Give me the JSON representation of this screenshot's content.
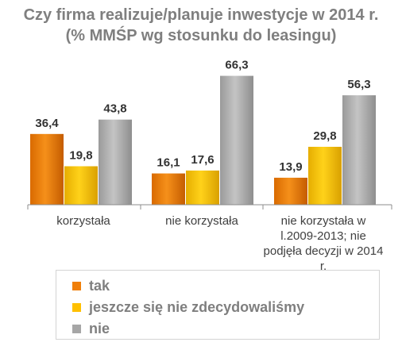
{
  "chart_data": {
    "type": "bar",
    "title": [
      "Czy firma realizuje/planuje inwestycje w 2014 r.",
      "(% MMŚP wg stosunku do leasingu)"
    ],
    "categories": [
      [
        "korzystała"
      ],
      [
        "nie korzystała"
      ],
      [
        "nie korzystała w",
        "l.2009-2013; nie",
        "podjęła decyzji w 2014",
        "r."
      ]
    ],
    "series": [
      {
        "name": "tak",
        "values": [
          36.4,
          16.1,
          13.9
        ],
        "labels": [
          "36,4",
          "16,1",
          "13,9"
        ],
        "color": "#f07f09"
      },
      {
        "name": "jeszcze się nie zdecydowaliśmy",
        "values": [
          19.8,
          17.6,
          29.8
        ],
        "labels": [
          "19,8",
          "17,6",
          "29,8"
        ],
        "color": "#ffc000"
      },
      {
        "name": "nie",
        "values": [
          43.8,
          66.3,
          56.3
        ],
        "labels": [
          "43,8",
          "66,3",
          "56,3"
        ],
        "color": "#a6a6a6"
      }
    ],
    "ylim": [
      0,
      70
    ],
    "grid": false,
    "legend_position": "bottom"
  }
}
